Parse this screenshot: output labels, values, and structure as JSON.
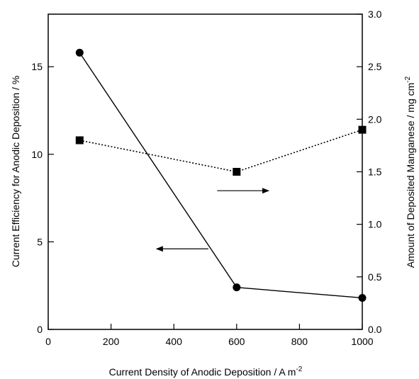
{
  "chart_data": {
    "type": "line",
    "title": "",
    "xlabel": "Current Density of Anodic Deposition / A m",
    "xlabel_sup": "-2",
    "ylabel_left": "Current Efficiency for Anodic Deposition / %",
    "ylabel_right": "Amount of Deposited Manganese / mg cm",
    "ylabel_right_sup": "-2",
    "xlim": [
      0,
      1000
    ],
    "ylim_left": [
      0,
      18
    ],
    "ylim_right": [
      0,
      3.0
    ],
    "x_ticks": [
      "0",
      "200",
      "400",
      "600",
      "800",
      "1000"
    ],
    "y_left_ticks": [
      "0",
      "5",
      "10",
      "15"
    ],
    "y_right_ticks": [
      "0.0",
      "0.5",
      "1.0",
      "1.5",
      "2.0",
      "2.5",
      "3.0"
    ],
    "grid": false,
    "series": [
      {
        "axis": "left",
        "marker": "circle",
        "line_style": "solid",
        "x": [
          100,
          600,
          1000
        ],
        "y": [
          15.8,
          2.4,
          1.8
        ]
      },
      {
        "axis": "right",
        "marker": "square",
        "line_style": "dotted",
        "x": [
          100,
          600,
          1000
        ],
        "y": [
          1.8,
          1.5,
          1.9
        ]
      }
    ],
    "annotations": [
      {
        "type": "arrow",
        "direction": "left",
        "points_to": "left-axis",
        "x_from": 510,
        "x_to": 345,
        "y_left": 4.6
      },
      {
        "type": "arrow",
        "direction": "right",
        "points_to": "right-axis",
        "x_from": 538,
        "x_to": 702,
        "y_right": 1.32
      }
    ]
  }
}
